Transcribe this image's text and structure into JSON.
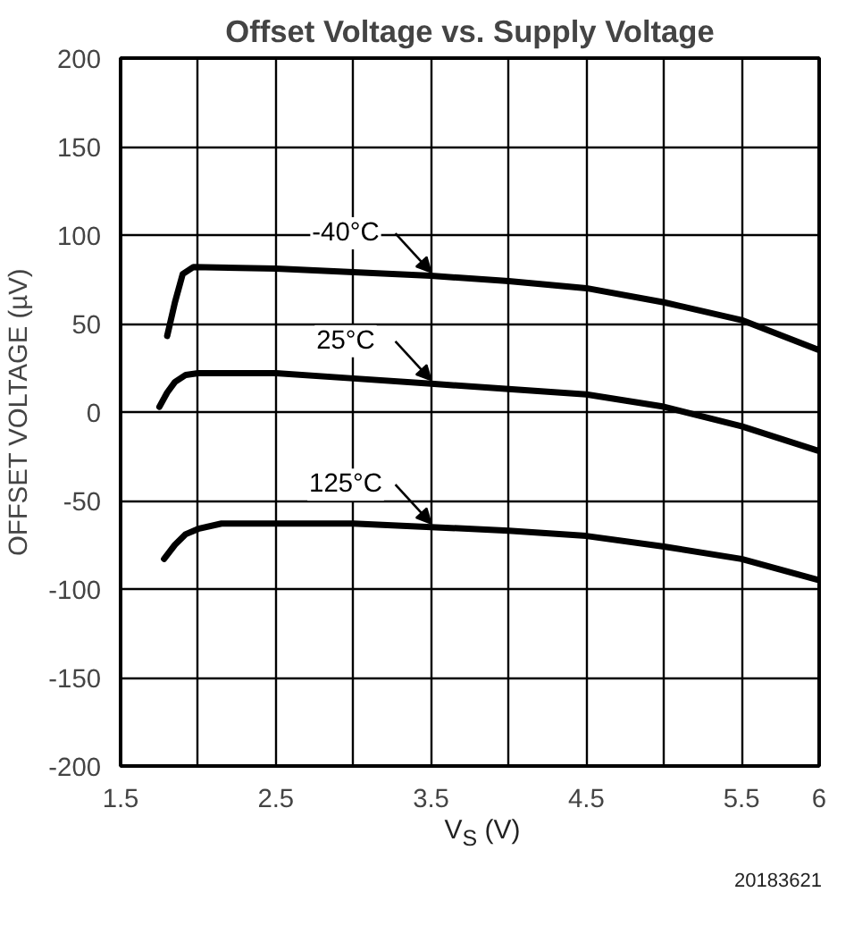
{
  "chart_data": {
    "type": "line",
    "title": "Offset Voltage vs. Supply Voltage",
    "xlabel": "V$_{S}$ (V)",
    "ylabel": "OFFSET VOLTAGE (µV)",
    "series": [
      {
        "name": "-40°C",
        "color": "#000000",
        "x": [
          1.8,
          1.85,
          1.9,
          1.97,
          2.5,
          3.0,
          3.5,
          4.0,
          4.5,
          5.0,
          5.5,
          6.0
        ],
        "values": [
          43,
          62,
          78,
          82,
          81,
          79,
          77,
          74,
          70,
          62,
          52,
          35
        ]
      },
      {
        "name": "25°C",
        "color": "#000000",
        "x": [
          1.75,
          1.8,
          1.85,
          1.92,
          2.0,
          2.5,
          3.0,
          3.5,
          4.0,
          4.5,
          5.0,
          5.5,
          6.0
        ],
        "values": [
          3,
          11,
          17,
          21,
          22,
          22,
          19,
          16,
          13,
          10,
          3,
          -8,
          -22
        ]
      },
      {
        "name": "125°C",
        "color": "#000000",
        "x": [
          1.78,
          1.85,
          1.92,
          2.0,
          2.15,
          2.5,
          3.0,
          3.5,
          4.0,
          4.5,
          5.0,
          5.5,
          6.0
        ],
        "values": [
          -83,
          -75,
          -69,
          -66,
          -63,
          -63,
          -63,
          -65,
          -67,
          -70,
          -76,
          -83,
          -95
        ]
      }
    ],
    "annotations": [
      "20183621"
    ],
    "xlim": [
      1.5,
      6
    ],
    "ylim": [
      -200,
      200
    ],
    "xticks": [
      1.5,
      {
        "value": 2,
        "label": null
      },
      2.5,
      {
        "value": 3,
        "label": null
      },
      3.5,
      {
        "value": 4,
        "label": null
      },
      4.5,
      {
        "value": 5,
        "label": null
      },
      5.5,
      6
    ],
    "yticks": [
      -200,
      -150,
      -100,
      -50,
      0,
      50,
      100,
      150,
      200
    ],
    "grid": true,
    "legend": false,
    "marker": "none",
    "line_style": "solid"
  }
}
